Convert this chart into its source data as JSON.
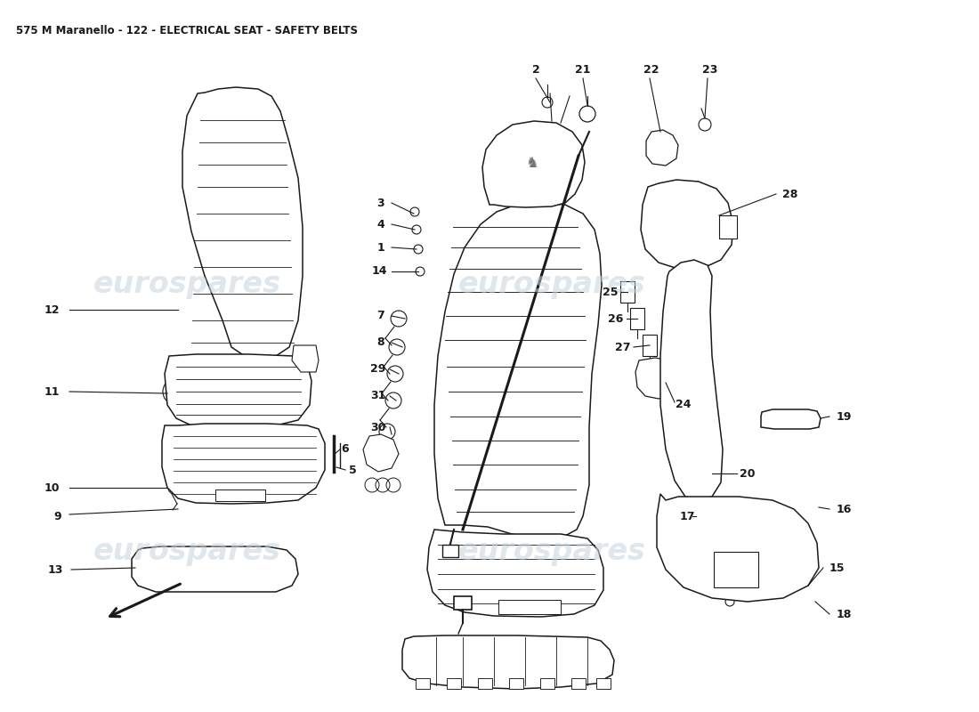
{
  "title": "575 M Maranello - 122 - ELECTRICAL SEAT - SAFETY BELTS",
  "title_fontsize": 8.5,
  "bg_color": "#ffffff",
  "text_color": "#1a1a1a",
  "line_color": "#1a1a1a",
  "watermark_text": "eurospares",
  "watermark_color": "#c8d4de",
  "watermark_alpha": 0.55,
  "figsize": [
    11.0,
    8.0
  ],
  "dpi": 100
}
